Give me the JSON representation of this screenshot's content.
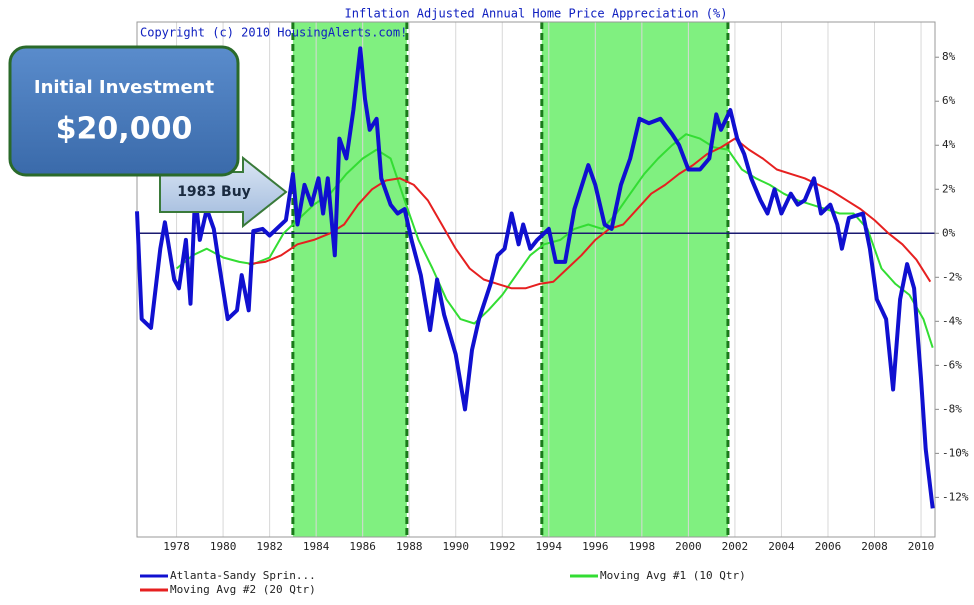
{
  "chart_data": {
    "type": "line",
    "title": "Inflation Adjusted Annual Home Price Appreciation (%)",
    "subtitle": "Copyright (c) 2010 HousingAlerts.com!",
    "xlim": [
      1976.3,
      2010.6
    ],
    "ylim": [
      -13.8,
      9.6
    ],
    "xticks": [
      1978,
      1980,
      1982,
      1984,
      1986,
      1988,
      1990,
      1992,
      1994,
      1996,
      1998,
      2000,
      2002,
      2004,
      2006,
      2008,
      2010
    ],
    "yticks": [
      {
        "value": 8,
        "label": "8%"
      },
      {
        "value": 6,
        "label": "6%"
      },
      {
        "value": 4,
        "label": "4%"
      },
      {
        "value": 2,
        "label": "2%"
      },
      {
        "value": 0,
        "label": "0%"
      },
      {
        "value": -2,
        "label": "-2%"
      },
      {
        "value": -4,
        "label": "-4%"
      },
      {
        "value": -6,
        "label": "-6%"
      },
      {
        "value": -8,
        "label": "-8%"
      },
      {
        "value": -10,
        "label": "-10%"
      },
      {
        "value": -12,
        "label": "-12%"
      }
    ],
    "grid": true,
    "shaded_regions": [
      [
        1983.0,
        1987.9
      ],
      [
        1993.7,
        2001.7
      ]
    ],
    "shade_color": "#80f080",
    "callouts": {
      "box_title": "Initial Investment",
      "box_amount": "$20,000",
      "arrow": "1983 Buy"
    },
    "series": [
      {
        "name": "Atlanta-Sandy Sprin...",
        "color": "#1010d0",
        "x": [
          1976.3,
          1976.5,
          1976.9,
          1977.3,
          1977.5,
          1977.9,
          1978.1,
          1978.4,
          1978.6,
          1978.8,
          1979.0,
          1979.3,
          1979.6,
          1979.8,
          1980.2,
          1980.6,
          1980.8,
          1981.1,
          1981.3,
          1981.7,
          1982.0,
          1982.4,
          1982.7,
          1983.0,
          1983.2,
          1983.5,
          1983.8,
          1984.1,
          1984.3,
          1984.5,
          1984.8,
          1985.0,
          1985.3,
          1985.6,
          1985.9,
          1986.1,
          1986.3,
          1986.6,
          1986.8,
          1987.2,
          1987.5,
          1987.8,
          1988.1,
          1988.5,
          1988.9,
          1989.2,
          1989.5,
          1990.0,
          1990.4,
          1990.7,
          1991.0,
          1991.5,
          1991.8,
          1992.1,
          1992.4,
          1992.7,
          1992.9,
          1993.2,
          1993.5,
          1994.0,
          1994.3,
          1994.7,
          1995.1,
          1995.7,
          1996.0,
          1996.4,
          1996.7,
          1997.1,
          1997.5,
          1997.9,
          1998.3,
          1998.8,
          1999.3,
          1999.6,
          2000.0,
          2000.5,
          2000.9,
          2001.2,
          2001.4,
          2001.8,
          2002.1,
          2002.4,
          2002.7,
          2003.1,
          2003.4,
          2003.7,
          2004.0,
          2004.4,
          2004.7,
          2005.0,
          2005.4,
          2005.7,
          2006.1,
          2006.4,
          2006.6,
          2006.9,
          2007.5,
          2007.8,
          2008.1,
          2008.5,
          2008.8,
          2009.1,
          2009.4,
          2009.7,
          2010.0,
          2010.2,
          2010.5
        ],
        "values": [
          1.0,
          -3.9,
          -4.3,
          -0.7,
          0.5,
          -2.1,
          -2.5,
          -0.3,
          -3.2,
          1.8,
          -0.3,
          1.1,
          0.2,
          -1.2,
          -3.9,
          -3.5,
          -1.9,
          -3.5,
          0.1,
          0.2,
          -0.1,
          0.3,
          0.6,
          2.7,
          0.4,
          2.2,
          1.3,
          2.5,
          0.9,
          2.5,
          -1.0,
          4.3,
          3.4,
          5.6,
          8.4,
          6.1,
          4.7,
          5.2,
          2.5,
          1.3,
          0.9,
          1.1,
          -0.3,
          -1.9,
          -4.4,
          -2.1,
          -3.7,
          -5.5,
          -8.0,
          -5.3,
          -3.9,
          -2.3,
          -1.0,
          -0.7,
          0.9,
          -0.5,
          0.4,
          -0.7,
          -0.3,
          0.2,
          -1.3,
          -1.3,
          1.1,
          3.1,
          2.2,
          0.4,
          0.2,
          2.2,
          3.4,
          5.2,
          5.0,
          5.2,
          4.5,
          4.0,
          2.9,
          2.9,
          3.4,
          5.4,
          4.7,
          5.6,
          4.3,
          3.6,
          2.5,
          1.5,
          0.9,
          2.0,
          0.9,
          1.8,
          1.3,
          1.5,
          2.5,
          0.9,
          1.3,
          0.4,
          -0.7,
          0.7,
          0.9,
          -0.7,
          -3.0,
          -3.9,
          -7.1,
          -3.0,
          -1.4,
          -2.5,
          -6.6,
          -9.8,
          -12.5
        ]
      },
      {
        "name": "Moving Avg #1 (10 Qtr)",
        "color": "#33dd33",
        "x": [
          1978.0,
          1978.7,
          1979.3,
          1980.0,
          1980.7,
          1981.3,
          1982.0,
          1982.6,
          1983.2,
          1983.9,
          1984.6,
          1985.3,
          1986.0,
          1986.6,
          1987.2,
          1987.8,
          1988.4,
          1989.0,
          1989.6,
          1990.2,
          1990.8,
          1991.4,
          1992.0,
          1992.6,
          1993.2,
          1993.8,
          1994.5,
          1995.1,
          1995.7,
          1996.3,
          1996.9,
          1997.5,
          1998.1,
          1998.7,
          1999.3,
          1999.9,
          2000.5,
          2001.1,
          2001.7,
          2002.3,
          2002.9,
          2003.5,
          2004.1,
          2004.7,
          2005.3,
          2005.9,
          2006.5,
          2007.1,
          2007.7,
          2008.3,
          2008.9,
          2009.5,
          2010.1,
          2010.5
        ],
        "values": [
          -1.6,
          -1.0,
          -0.7,
          -1.1,
          -1.3,
          -1.4,
          -1.1,
          0.0,
          0.6,
          1.3,
          1.8,
          2.7,
          3.4,
          3.8,
          3.4,
          1.5,
          -0.3,
          -1.6,
          -3.0,
          -3.9,
          -4.1,
          -3.5,
          -2.8,
          -1.9,
          -1.0,
          -0.5,
          -0.3,
          0.2,
          0.4,
          0.2,
          0.9,
          1.8,
          2.7,
          3.4,
          4.0,
          4.5,
          4.3,
          3.9,
          3.8,
          2.9,
          2.5,
          2.2,
          1.8,
          1.5,
          1.3,
          1.1,
          0.9,
          0.9,
          0.2,
          -1.6,
          -2.3,
          -2.8,
          -3.9,
          -5.2
        ]
      },
      {
        "name": "Moving Avg #2 (20 Qtr)",
        "color": "#e62020",
        "x": [
          1981.1,
          1981.8,
          1982.5,
          1983.2,
          1983.9,
          1984.6,
          1985.2,
          1985.8,
          1986.4,
          1987.0,
          1987.6,
          1988.2,
          1988.8,
          1989.4,
          1990.0,
          1990.6,
          1991.2,
          1991.8,
          1992.4,
          1993.0,
          1993.6,
          1994.2,
          1994.8,
          1995.4,
          1996.0,
          1996.6,
          1997.2,
          1997.8,
          1998.4,
          1999.0,
          1999.6,
          2000.2,
          2000.8,
          2001.4,
          2002.0,
          2002.6,
          2003.2,
          2003.8,
          2004.4,
          2005.0,
          2005.6,
          2006.2,
          2006.8,
          2007.4,
          2008.0,
          2008.6,
          2009.2,
          2009.8,
          2010.4
        ],
        "values": [
          -1.4,
          -1.3,
          -1.0,
          -0.5,
          -0.3,
          0.0,
          0.4,
          1.3,
          2.0,
          2.4,
          2.5,
          2.2,
          1.5,
          0.4,
          -0.7,
          -1.6,
          -2.1,
          -2.3,
          -2.5,
          -2.5,
          -2.3,
          -2.2,
          -1.6,
          -1.0,
          -0.3,
          0.2,
          0.4,
          1.1,
          1.8,
          2.2,
          2.7,
          3.1,
          3.6,
          3.9,
          4.3,
          3.8,
          3.4,
          2.9,
          2.7,
          2.5,
          2.2,
          1.9,
          1.5,
          1.1,
          0.6,
          0.0,
          -0.5,
          -1.2,
          -2.2
        ]
      }
    ]
  }
}
